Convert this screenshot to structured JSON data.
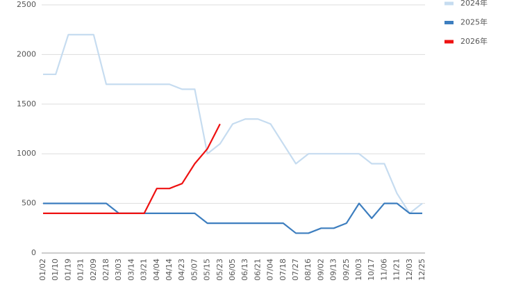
{
  "chart_data": {
    "type": "line",
    "categories": [
      "01/02",
      "01/10",
      "01/19",
      "01/31",
      "02/09",
      "02/18",
      "03/03",
      "03/14",
      "03/21",
      "04/04",
      "04/14",
      "04/23",
      "05/07",
      "05/15",
      "05/23",
      "06/05",
      "06/13",
      "06/21",
      "07/04",
      "07/18",
      "07/27",
      "08/16",
      "09/02",
      "09/13",
      "09/25",
      "10/03",
      "10/17",
      "11/06",
      "11/21",
      "12/03",
      "12/25"
    ],
    "series": [
      {
        "name": "2024年",
        "color": "#c6dcf0",
        "values": [
          1800,
          1800,
          2200,
          2200,
          2200,
          1700,
          1700,
          1700,
          1700,
          1700,
          1700,
          1650,
          1650,
          1000,
          1100,
          1300,
          1350,
          1350,
          1300,
          1100,
          900,
          1000,
          1000,
          1000,
          1000,
          1000,
          900,
          900,
          600,
          400,
          500
        ]
      },
      {
        "name": "2025年",
        "color": "#3d7ebf",
        "values": [
          500,
          500,
          500,
          500,
          500,
          500,
          400,
          400,
          400,
          400,
          400,
          400,
          400,
          300,
          300,
          300,
          300,
          300,
          300,
          300,
          200,
          200,
          250,
          250,
          300,
          500,
          350,
          500,
          500,
          400,
          400
        ]
      },
      {
        "name": "2026年",
        "color": "#ee1111",
        "values": [
          400,
          400,
          400,
          400,
          400,
          400,
          400,
          400,
          400,
          650,
          650,
          700,
          900,
          1050,
          1300,
          null,
          null,
          null,
          null,
          null,
          null,
          null,
          null,
          null,
          null,
          null,
          null,
          null,
          null,
          null,
          null
        ]
      }
    ],
    "ylim": [
      0,
      2500
    ],
    "yticks": [
      0,
      500,
      1000,
      1500,
      2000,
      2500
    ],
    "grid": true,
    "legend": "top-right"
  }
}
